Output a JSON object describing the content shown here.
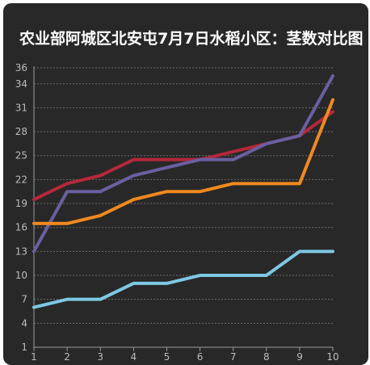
{
  "title": "农业部阿城区北安屯7月7日水稻小区：茎数对比图",
  "chart_data": {
    "type": "line",
    "title": "农业部阿城区北安屯7月7日水稻小区：茎数对比图",
    "xlabel": "",
    "ylabel": "",
    "x": [
      1,
      2,
      3,
      4,
      5,
      6,
      7,
      8,
      9,
      10
    ],
    "ylim": [
      1,
      36
    ],
    "yticks": [
      1,
      4,
      7,
      10,
      13,
      16,
      19,
      22,
      25,
      28,
      31,
      34,
      36
    ],
    "grid": true,
    "series": [
      {
        "color": "#b5283a",
        "values": [
          19.5,
          21.5,
          22.5,
          24.5,
          24.5,
          24.5,
          25.5,
          26.5,
          27.5,
          30.5
        ]
      },
      {
        "color": "#6b5fa0",
        "values": [
          13,
          20.5,
          20.5,
          22.5,
          23.5,
          24.5,
          24.5,
          26.5,
          27.5,
          35
        ]
      },
      {
        "color": "#f0891e",
        "values": [
          16.5,
          16.5,
          17.5,
          19.5,
          20.5,
          20.5,
          21.5,
          21.5,
          21.5,
          32
        ]
      },
      {
        "color": "#7ec8e3",
        "values": [
          6,
          7,
          7,
          9,
          9,
          10,
          10,
          10,
          13,
          13
        ]
      }
    ]
  }
}
